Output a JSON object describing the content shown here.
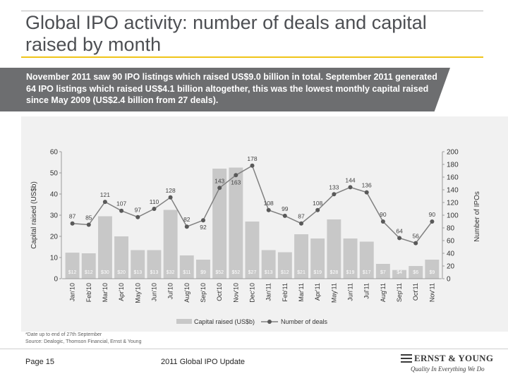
{
  "slide": {
    "title": "Global IPO activity: number of deals and capital raised by month",
    "summary": "November 2011 saw 90 IPO listings which raised US$9.0 billion in total. September 2011 generated 64 IPO listings which raised US$4.1 billion altogether, this was the lowest monthly capital raised since May 2009 (US$2.4 billion from 27 deals).",
    "footnote_lines": [
      "*Date up to end of 27th September",
      "Source: Dealogic, Thomson Financial, Ernst & Young"
    ],
    "page_label": "Page 15",
    "report_name": "2011 Global IPO Update",
    "logo_name": "ERNST & YOUNG",
    "logo_tagline": "Quality In Everything We Do",
    "colors": {
      "title_rule": "#f0c419",
      "banner": "#6d6e70",
      "bars": "#c8c8c8",
      "line": "#808080",
      "markers": "#595959"
    }
  },
  "chart_data": {
    "type": "bar",
    "categories": [
      "Jan'10",
      "Feb'10",
      "Mar'10",
      "Apr'10",
      "May'10",
      "Jun'10",
      "Jul'10",
      "Aug'10",
      "Sep'10",
      "Oct'10",
      "Nov'10",
      "Dec'10",
      "Jan'11",
      "Feb'11",
      "Mar'11",
      "Apr'11",
      "May'11",
      "Jun'11",
      "Jul'11",
      "Aug'11",
      "Sep'11",
      "Oct'11",
      "Nov'11"
    ],
    "series": [
      {
        "name": "Capital raised (US$b)",
        "type": "bar",
        "axis": "left",
        "values": [
          12.3,
          12.0,
          29.5,
          20.0,
          13.5,
          13.5,
          32.5,
          11.0,
          9.0,
          52.0,
          52.5,
          27.0,
          13.5,
          12.5,
          21.0,
          19.0,
          28.0,
          19.0,
          17.5,
          7.0,
          4.1,
          6.0,
          9.0
        ],
        "data_labels": [
          "$12",
          "$12",
          "$30",
          "$20",
          "$13",
          "$13",
          "$32",
          "$11",
          "$9",
          "$52",
          "$52",
          "$27",
          "$13",
          "$12",
          "$21",
          "$19",
          "$28",
          "$19",
          "$17",
          "$7",
          "$4",
          "$6",
          "$9"
        ]
      },
      {
        "name": "Number of deals",
        "type": "line",
        "axis": "right",
        "values": [
          87,
          85,
          121,
          107,
          97,
          110,
          128,
          82,
          92,
          143,
          163,
          178,
          108,
          99,
          87,
          108,
          133,
          144,
          136,
          90,
          64,
          56,
          90
        ]
      }
    ],
    "ylabel": "Capital raised (US$b)",
    "y2label": "Number of IPOs",
    "ylim": [
      0,
      60
    ],
    "y2lim": [
      0,
      200
    ],
    "yticks": [
      0,
      10,
      20,
      30,
      40,
      50,
      60
    ],
    "y2ticks": [
      0,
      20,
      40,
      60,
      80,
      100,
      120,
      140,
      160,
      180,
      200
    ],
    "grid": false,
    "legend_position": "bottom"
  }
}
